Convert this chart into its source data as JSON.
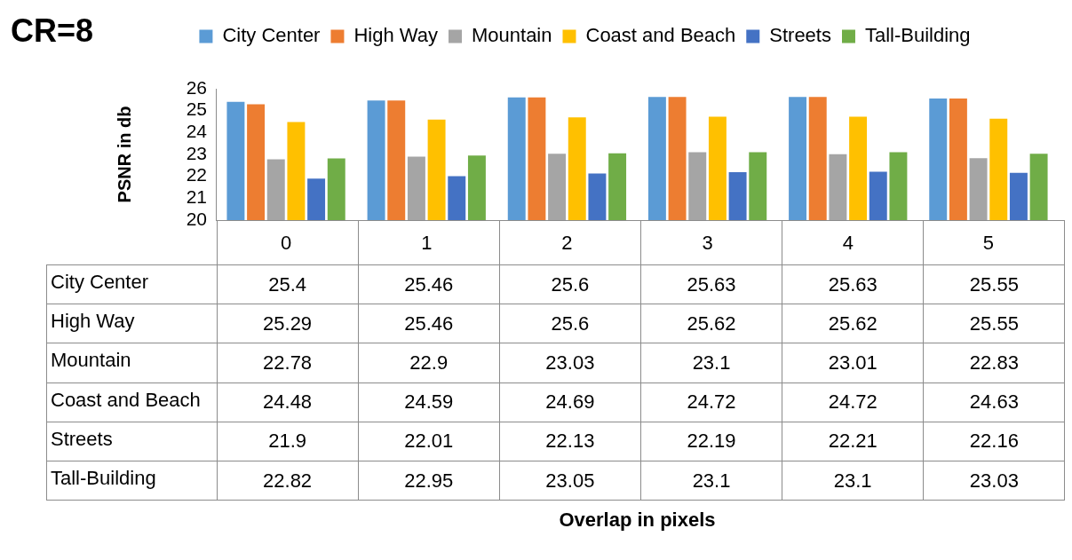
{
  "chart_data": {
    "type": "bar",
    "title": "CR=8",
    "ylabel": "PSNR in db",
    "annotations": [
      "Overlap in pixels"
    ],
    "categories": [
      "0",
      "1",
      "2",
      "3",
      "4",
      "5"
    ],
    "series": [
      {
        "name": "City Center",
        "color": "#5b9bd5",
        "values": [
          25.4,
          25.46,
          25.6,
          25.63,
          25.63,
          25.55
        ]
      },
      {
        "name": "High Way",
        "color": "#ed7d31",
        "values": [
          25.29,
          25.46,
          25.6,
          25.62,
          25.62,
          25.55
        ]
      },
      {
        "name": "Mountain",
        "color": "#a5a5a5",
        "values": [
          22.78,
          22.9,
          23.03,
          23.1,
          23.01,
          22.83
        ]
      },
      {
        "name": "Coast and Beach",
        "color": "#ffc000",
        "values": [
          24.48,
          24.59,
          24.69,
          24.72,
          24.72,
          24.63
        ]
      },
      {
        "name": "Streets",
        "color": "#4472c4",
        "values": [
          21.9,
          22.01,
          22.13,
          22.19,
          22.21,
          22.16
        ]
      },
      {
        "name": "Tall-Building",
        "color": "#70ad47",
        "values": [
          22.82,
          22.95,
          23.05,
          23.1,
          23.1,
          23.03
        ]
      }
    ],
    "ylim": [
      20,
      26
    ],
    "yticks": [
      20,
      21,
      22,
      23,
      24,
      25,
      26
    ],
    "grid": false,
    "legend": "top",
    "data_labels": true
  }
}
